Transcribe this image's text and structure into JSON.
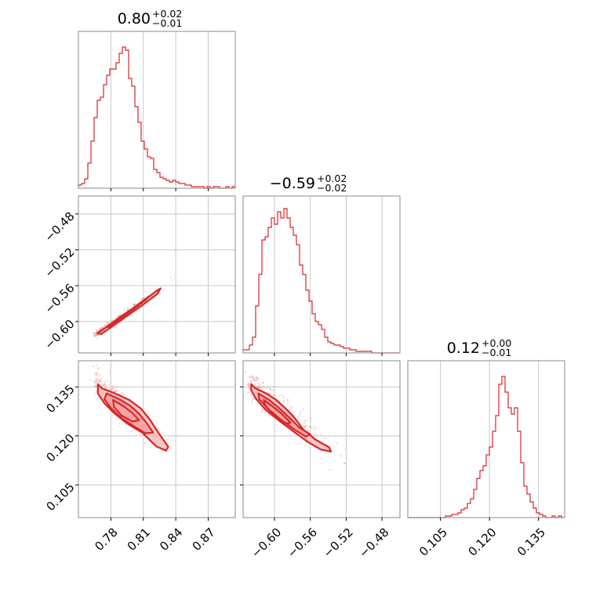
{
  "chart_data": {
    "type": "corner",
    "color": "#d62728",
    "fill_color": "#f4b9b9",
    "grid": true,
    "params": [
      {
        "title": {
          "main": "0.80",
          "sup": "+0.02",
          "sub": "−0.01"
        },
        "range": [
          0.75,
          0.895
        ],
        "ticks": [
          0.78,
          0.81,
          0.84,
          0.87
        ],
        "tick_labels": [
          "0.78",
          "0.81",
          "0.84",
          "0.87"
        ],
        "hist": [
          0.02,
          0.03,
          0.06,
          0.16,
          0.3,
          0.45,
          0.56,
          0.58,
          0.66,
          0.72,
          0.76,
          0.76,
          0.8,
          0.86,
          0.9,
          0.88,
          0.7,
          0.65,
          0.52,
          0.42,
          0.3,
          0.25,
          0.2,
          0.19,
          0.12,
          0.1,
          0.07,
          0.06,
          0.05,
          0.04,
          0.05,
          0.04,
          0.03,
          0.03,
          0.02,
          0.02,
          0.01,
          0.01,
          0.01,
          0.01,
          0.0,
          0.01,
          0.0,
          0.01,
          0.01,
          0.0,
          0.0,
          0.01,
          0.0,
          0.01
        ]
      },
      {
        "title": {
          "main": "−0.59",
          "sup": "+0.02",
          "sub": "−0.02"
        },
        "range": [
          -0.635,
          -0.46
        ],
        "ticks": [
          -0.6,
          -0.56,
          -0.52,
          -0.48
        ],
        "tick_labels": [
          "−0.60",
          "−0.56",
          "−0.52",
          "−0.48"
        ],
        "hist": [
          0.02,
          0.02,
          0.05,
          0.1,
          0.3,
          0.5,
          0.72,
          0.74,
          0.8,
          0.86,
          0.82,
          0.9,
          0.86,
          0.92,
          0.86,
          0.8,
          0.75,
          0.69,
          0.56,
          0.5,
          0.4,
          0.33,
          0.25,
          0.2,
          0.18,
          0.15,
          0.1,
          0.07,
          0.06,
          0.05,
          0.05,
          0.04,
          0.03,
          0.03,
          0.02,
          0.02,
          0.01,
          0.01,
          0.01,
          0.01,
          0.01,
          0.0,
          0.0,
          0.0,
          0.0,
          0.0,
          0.0,
          0.0,
          0.0,
          0.0
        ]
      },
      {
        "title": {
          "main": "0.12",
          "sup": "+0.00",
          "sub": "−0.01"
        },
        "range": [
          0.095,
          0.143
        ],
        "ticks": [
          0.105,
          0.12,
          0.135
        ],
        "tick_labels": [
          "0.105",
          "0.120",
          "0.135"
        ],
        "hist": [
          0.0,
          0.0,
          0.0,
          0.0,
          0.0,
          0.0,
          0.0,
          0.0,
          0.0,
          0.0,
          0.0,
          0.0,
          0.01,
          0.01,
          0.02,
          0.02,
          0.03,
          0.05,
          0.06,
          0.09,
          0.12,
          0.18,
          0.25,
          0.3,
          0.33,
          0.4,
          0.45,
          0.55,
          0.65,
          0.85,
          0.9,
          0.8,
          0.7,
          0.66,
          0.7,
          0.55,
          0.35,
          0.2,
          0.15,
          0.1,
          0.06,
          0.03,
          0.02,
          0.01,
          0.0,
          0.0,
          0.01,
          0.0,
          0.01,
          0.0
        ]
      }
    ],
    "pairs": [
      {
        "x_param": 0,
        "y_param": 1,
        "contours": [
          [
            [
              0.768,
              -0.613
            ],
            [
              0.782,
              -0.601
            ],
            [
              0.795,
              -0.59
            ],
            [
              0.808,
              -0.579
            ],
            [
              0.822,
              -0.566
            ],
            [
              0.826,
              -0.563
            ],
            [
              0.823,
              -0.569
            ],
            [
              0.81,
              -0.581
            ],
            [
              0.797,
              -0.592
            ],
            [
              0.783,
              -0.604
            ],
            [
              0.771,
              -0.614
            ]
          ],
          [
            [
              0.776,
              -0.606
            ],
            [
              0.79,
              -0.594
            ],
            [
              0.803,
              -0.583
            ],
            [
              0.815,
              -0.572
            ],
            [
              0.812,
              -0.576
            ],
            [
              0.8,
              -0.587
            ],
            [
              0.787,
              -0.598
            ],
            [
              0.778,
              -0.606
            ]
          ],
          [
            [
              0.783,
              -0.601
            ],
            [
              0.796,
              -0.59
            ],
            [
              0.806,
              -0.581
            ],
            [
              0.802,
              -0.585
            ],
            [
              0.792,
              -0.594
            ],
            [
              0.785,
              -0.6
            ]
          ]
        ],
        "fill_levels": [
          0,
          1
        ]
      },
      {
        "x_param": 0,
        "y_param": 2,
        "contours": [
          [
            [
              0.768,
              0.1358
            ],
            [
              0.772,
              0.1345
            ],
            [
              0.784,
              0.133
            ],
            [
              0.797,
              0.131
            ],
            [
              0.808,
              0.1283
            ],
            [
              0.816,
              0.125
            ],
            [
              0.825,
              0.1205
            ],
            [
              0.833,
              0.1167
            ],
            [
              0.831,
              0.1155
            ],
            [
              0.822,
              0.1168
            ],
            [
              0.809,
              0.121
            ],
            [
              0.795,
              0.1238
            ],
            [
              0.783,
              0.127
            ],
            [
              0.774,
              0.13
            ],
            [
              0.768,
              0.133
            ]
          ],
          [
            [
              0.776,
              0.133
            ],
            [
              0.788,
              0.1312
            ],
            [
              0.798,
              0.1292
            ],
            [
              0.806,
              0.1268
            ],
            [
              0.813,
              0.124
            ],
            [
              0.819,
              0.121
            ],
            [
              0.812,
              0.1208
            ],
            [
              0.802,
              0.1228
            ],
            [
              0.79,
              0.1254
            ],
            [
              0.78,
              0.1285
            ],
            [
              0.774,
              0.1312
            ]
          ],
          [
            [
              0.782,
              0.131
            ],
            [
              0.792,
              0.129
            ],
            [
              0.8,
              0.127
            ],
            [
              0.806,
              0.1248
            ],
            [
              0.8,
              0.1244
            ],
            [
              0.79,
              0.1262
            ],
            [
              0.783,
              0.1288
            ]
          ]
        ],
        "fill_levels": [
          0,
          1
        ]
      },
      {
        "x_param": 1,
        "y_param": 2,
        "contours": [
          [
            [
              -0.626,
              0.1358
            ],
            [
              -0.621,
              0.1345
            ],
            [
              -0.609,
              0.133
            ],
            [
              -0.598,
              0.131
            ],
            [
              -0.588,
              0.1285
            ],
            [
              -0.579,
              0.126
            ],
            [
              -0.568,
              0.122
            ],
            [
              -0.555,
              0.119
            ],
            [
              -0.539,
              0.1165
            ],
            [
              -0.537,
              0.1152
            ],
            [
              -0.548,
              0.1158
            ],
            [
              -0.562,
              0.118
            ],
            [
              -0.577,
              0.121
            ],
            [
              -0.594,
              0.1245
            ],
            [
              -0.61,
              0.128
            ],
            [
              -0.621,
              0.1315
            ],
            [
              -0.626,
              0.134
            ]
          ],
          [
            [
              -0.618,
              0.133
            ],
            [
              -0.606,
              0.131
            ],
            [
              -0.596,
              0.1288
            ],
            [
              -0.585,
              0.126
            ],
            [
              -0.572,
              0.1225
            ],
            [
              -0.56,
              0.1205
            ],
            [
              -0.565,
              0.1198
            ],
            [
              -0.578,
              0.122
            ],
            [
              -0.592,
              0.1248
            ],
            [
              -0.606,
              0.128
            ],
            [
              -0.617,
              0.1312
            ]
          ],
          [
            [
              -0.612,
              0.131
            ],
            [
              -0.602,
              0.129
            ],
            [
              -0.592,
              0.1268
            ],
            [
              -0.582,
              0.124
            ],
            [
              -0.589,
              0.1238
            ],
            [
              -0.6,
              0.1262
            ],
            [
              -0.61,
              0.129
            ]
          ]
        ],
        "fill_levels": [
          0,
          1
        ]
      }
    ]
  }
}
